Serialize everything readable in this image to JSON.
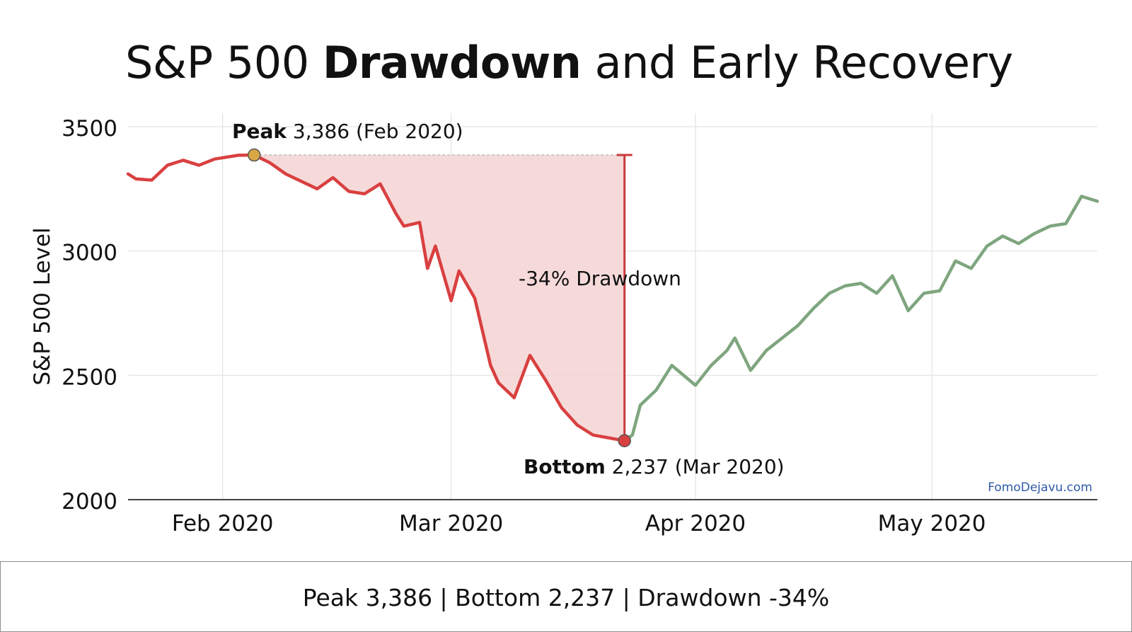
{
  "title": {
    "normal_1": "S&P 500 ",
    "bold": "Drawdown",
    "normal_2": " and Early Recovery"
  },
  "footer": {
    "summary": "Peak 3,386 | Bottom 2,237 | Drawdown -34%"
  },
  "watermark": "FomoDejavu.com",
  "colors": {
    "drawdown": "#d94040",
    "recovery": "#7fa67f",
    "shade": "#f4d3d3",
    "peak_marker": "#d9a646",
    "bottom_marker": "#d94040",
    "watermark": "#2d5aa6"
  },
  "chart_data": {
    "type": "line",
    "ylabel": "S&P 500 Level",
    "xlabel": "",
    "ylim": [
      2000,
      3500
    ],
    "yticks": [
      3500,
      3000,
      2500,
      2000
    ],
    "xlim": [
      "2020-01-20",
      "2020-05-22"
    ],
    "xticks": [
      {
        "date": "2020-02-01",
        "label": "Feb 2020"
      },
      {
        "date": "2020-03-01",
        "label": "Mar 2020"
      },
      {
        "date": "2020-04-01",
        "label": "Apr 2020"
      },
      {
        "date": "2020-05-01",
        "label": "May 2020"
      }
    ],
    "grid": true,
    "series": [
      {
        "key": "drawdown",
        "x": [
          "2020-01-20",
          "2020-01-21",
          "2020-01-23",
          "2020-01-25",
          "2020-01-27",
          "2020-01-29",
          "2020-01-31",
          "2020-02-03",
          "2020-02-05",
          "2020-02-07",
          "2020-02-09",
          "2020-02-11",
          "2020-02-13",
          "2020-02-15",
          "2020-02-17",
          "2020-02-19",
          "2020-02-21",
          "2020-02-23",
          "2020-02-24",
          "2020-02-26",
          "2020-02-27",
          "2020-02-28",
          "2020-03-01",
          "2020-03-02",
          "2020-03-04",
          "2020-03-06",
          "2020-03-07",
          "2020-03-09",
          "2020-03-11",
          "2020-03-13",
          "2020-03-15",
          "2020-03-17",
          "2020-03-19",
          "2020-03-23"
        ],
        "y": [
          3310,
          3290,
          3285,
          3345,
          3365,
          3345,
          3370,
          3385,
          3386,
          3355,
          3310,
          3280,
          3250,
          3295,
          3240,
          3230,
          3270,
          3150,
          3100,
          3115,
          2930,
          3020,
          2800,
          2920,
          2810,
          2540,
          2470,
          2410,
          2580,
          2480,
          2370,
          2300,
          2260,
          2237
        ]
      },
      {
        "key": "recovery",
        "x": [
          "2020-03-23",
          "2020-03-24",
          "2020-03-25",
          "2020-03-27",
          "2020-03-29",
          "2020-04-01",
          "2020-04-03",
          "2020-04-05",
          "2020-04-06",
          "2020-04-08",
          "2020-04-10",
          "2020-04-12",
          "2020-04-14",
          "2020-04-16",
          "2020-04-18",
          "2020-04-20",
          "2020-04-22",
          "2020-04-24",
          "2020-04-26",
          "2020-04-28",
          "2020-04-30",
          "2020-05-02",
          "2020-05-04",
          "2020-05-06",
          "2020-05-08",
          "2020-05-10",
          "2020-05-12",
          "2020-05-14",
          "2020-05-16",
          "2020-05-18",
          "2020-05-20",
          "2020-05-22"
        ],
        "y": [
          2237,
          2260,
          2380,
          2440,
          2540,
          2460,
          2540,
          2600,
          2650,
          2520,
          2600,
          2650,
          2700,
          2770,
          2830,
          2860,
          2870,
          2830,
          2900,
          2760,
          2830,
          2840,
          2960,
          2930,
          3020,
          3060,
          3030,
          3070,
          3100,
          3110,
          3220,
          3200
        ]
      }
    ],
    "annotations": [
      {
        "key": "peak",
        "bold": "Peak",
        "text": " 3,386 (Feb 2020)",
        "x": "2020-02-05",
        "y": 3386
      },
      {
        "key": "bottom",
        "bold": "Bottom",
        "text": " 2,237 (Mar 2020)",
        "x": "2020-03-23",
        "y": 2237
      },
      {
        "key": "drawdown",
        "text": "-34% Drawdown"
      }
    ]
  }
}
